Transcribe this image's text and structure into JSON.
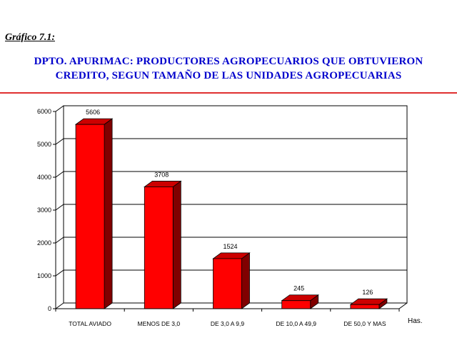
{
  "header": {
    "label": "Gráfico 7.1:",
    "title_line1": "DPTO. APURIMAC: PRODUCTORES AGROPECUARIOS QUE OBTUVIERON",
    "title_line2": "CREDITO, SEGUN TAMAÑO DE LAS UNIDADES AGROPECUARIAS"
  },
  "colors": {
    "title": "#0000cc",
    "rule": "#e03030",
    "bar_front": "#ff0000",
    "bar_top": "#cc0000",
    "bar_side": "#800000"
  },
  "chart_data": {
    "type": "bar",
    "categories": [
      "TOTAL AVIADO",
      "MENOS DE 3,0",
      "DE 3,0 A 9,9",
      "DE 10,0 A 49,9",
      "DE 50,0 Y MAS"
    ],
    "values": [
      5606,
      3708,
      1524,
      245,
      126
    ],
    "xlabel": "Has.",
    "ylabel": "",
    "ylim": [
      0,
      6000
    ],
    "yticks": [
      0,
      1000,
      2000,
      3000,
      4000,
      5000,
      6000
    ],
    "grid": true,
    "bar_style": "3d"
  }
}
